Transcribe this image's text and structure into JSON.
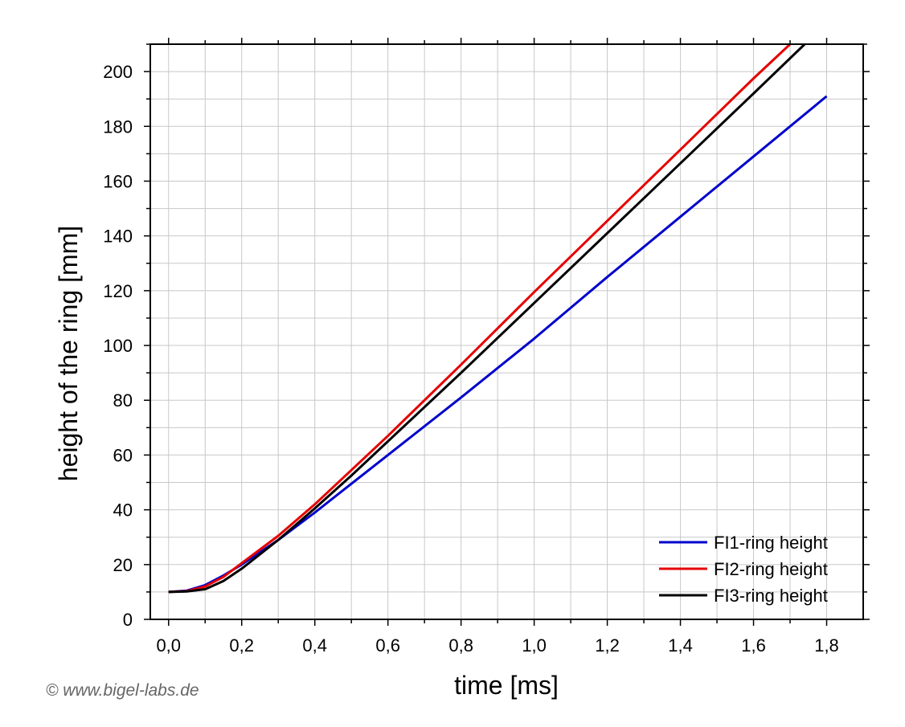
{
  "chart_data": {
    "type": "line",
    "xlabel": "time [ms]",
    "ylabel": "height of the ring [mm]",
    "xlim": [
      -0.05,
      1.9
    ],
    "ylim": [
      0,
      210
    ],
    "x_ticks": [
      "0,0",
      "0,2",
      "0,4",
      "0,6",
      "0,8",
      "1,0",
      "1,2",
      "1,4",
      "1,6",
      "1,8"
    ],
    "x_tick_values": [
      0,
      0.2,
      0.4,
      0.6,
      0.8,
      1.0,
      1.2,
      1.4,
      1.6,
      1.8
    ],
    "y_ticks": [
      "0",
      "20",
      "40",
      "60",
      "80",
      "100",
      "120",
      "140",
      "160",
      "180",
      "200"
    ],
    "y_tick_values": [
      0,
      20,
      40,
      60,
      80,
      100,
      120,
      140,
      160,
      180,
      200
    ],
    "grid": true,
    "legend_position": "bottom-right",
    "series": [
      {
        "name": "FI1-ring height",
        "color": "#0000cc",
        "x": [
          0,
          0.05,
          0.1,
          0.15,
          0.2,
          0.3,
          0.4,
          0.5,
          0.6,
          0.8,
          1.0,
          1.2,
          1.4,
          1.6,
          1.8
        ],
        "y": [
          10,
          10.5,
          12.5,
          16,
          20,
          29,
          39,
          49.5,
          60,
          81,
          102.5,
          125,
          147,
          169,
          191
        ]
      },
      {
        "name": "FI2-ring height",
        "color": "#e60000",
        "x": [
          0,
          0.05,
          0.1,
          0.15,
          0.2,
          0.3,
          0.4,
          0.5,
          0.6,
          0.8,
          1.0,
          1.2,
          1.4,
          1.6,
          1.7
        ],
        "y": [
          10,
          10.3,
          12,
          15.5,
          20.5,
          30.5,
          42,
          54.5,
          67,
          93,
          119.5,
          145.5,
          171.5,
          197.5,
          210
        ]
      },
      {
        "name": "FI3-ring height",
        "color": "#000000",
        "x": [
          0,
          0.05,
          0.1,
          0.15,
          0.2,
          0.3,
          0.4,
          0.5,
          0.6,
          0.8,
          1.0,
          1.2,
          1.4,
          1.6,
          1.74
        ],
        "y": [
          10,
          10.2,
          11,
          14,
          18.5,
          29,
          40.5,
          52.5,
          65,
          90,
          115.5,
          141,
          166.5,
          192,
          210
        ]
      }
    ]
  },
  "watermark": "© www.bigel-labs.de"
}
